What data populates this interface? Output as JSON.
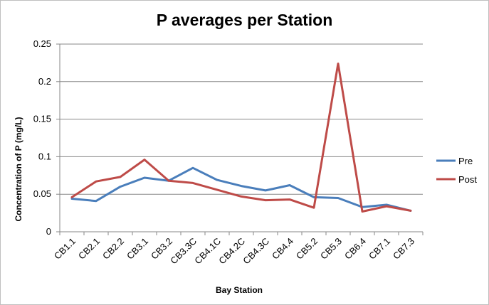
{
  "chart_data": {
    "type": "line",
    "title": "P averages per Station",
    "xlabel": "Bay Station",
    "ylabel": "Concentration of P (mg/L)",
    "ylim": [
      0,
      0.25
    ],
    "yticks": [
      0,
      0.05,
      0.1,
      0.15,
      0.2,
      0.25
    ],
    "ytick_labels": [
      "0",
      "0.05",
      "0.1",
      "0.15",
      "0.2",
      "0.25"
    ],
    "grid": "horizontal",
    "legend_position": "right",
    "categories": [
      "CB1.1",
      "CB2.1",
      "CB2.2",
      "CB3.1",
      "CB3.2",
      "CB3.3C",
      "CB4.1C",
      "CB4.2C",
      "CB4.3C",
      "CB4.4",
      "CB5.2",
      "CB5.3",
      "CB6.4",
      "CB7.1",
      "CB7.3"
    ],
    "series": [
      {
        "name": "Pre",
        "color": "#4a7ebb",
        "values": [
          0.044,
          0.041,
          0.06,
          0.072,
          0.068,
          0.085,
          0.069,
          0.061,
          0.055,
          0.062,
          0.046,
          0.045,
          0.033,
          0.036,
          0.028
        ]
      },
      {
        "name": "Post",
        "color": "#be4b48",
        "values": [
          0.046,
          0.067,
          0.073,
          0.096,
          0.068,
          0.065,
          0.056,
          0.047,
          0.042,
          0.043,
          0.032,
          0.224,
          0.027,
          0.034,
          0.028
        ]
      }
    ]
  }
}
